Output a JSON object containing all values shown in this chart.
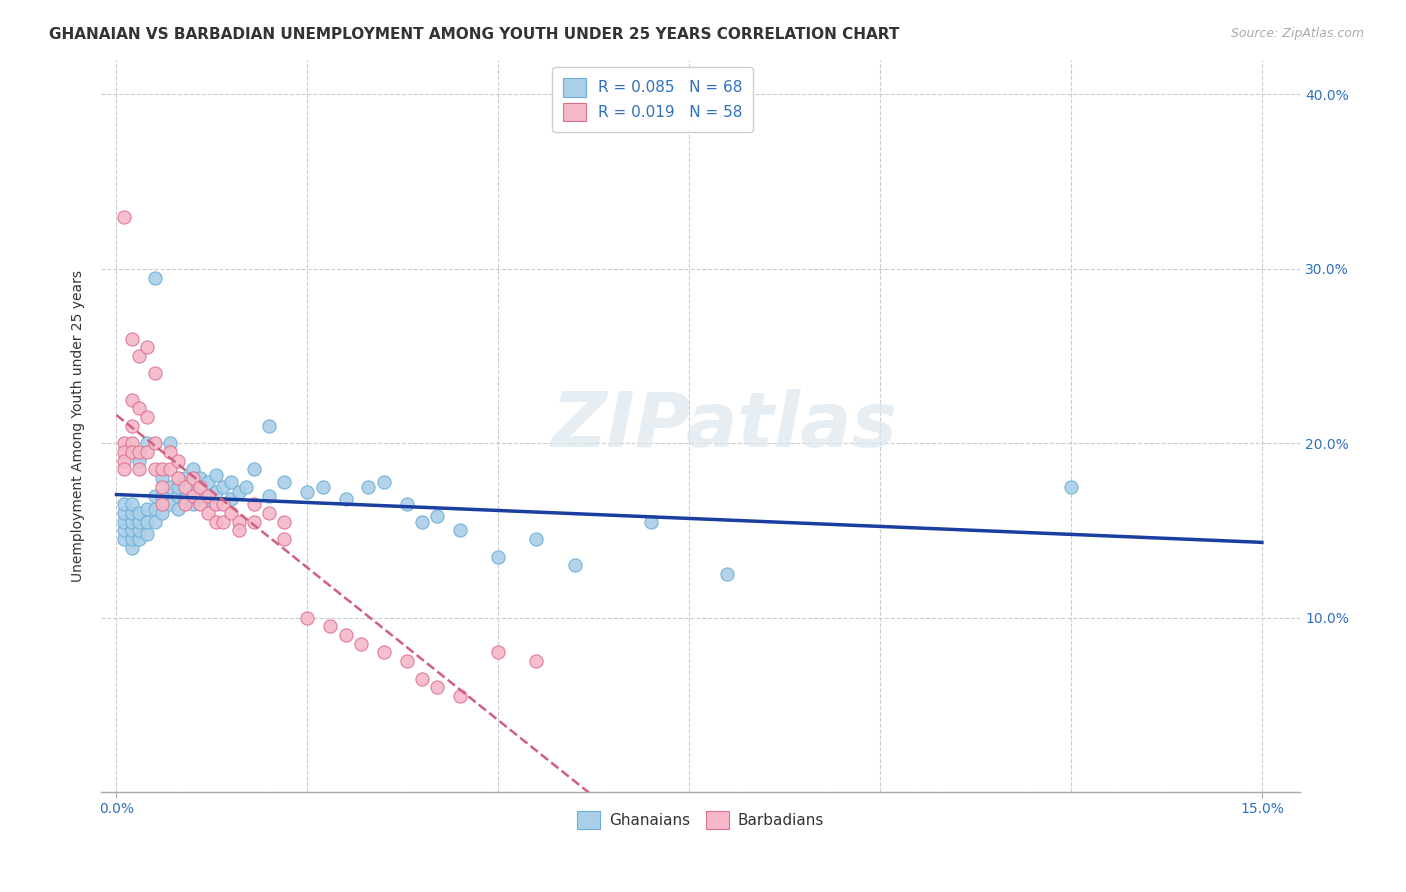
{
  "title": "GHANAIAN VS BARBADIAN UNEMPLOYMENT AMONG YOUTH UNDER 25 YEARS CORRELATION CHART",
  "source": "Source: ZipAtlas.com",
  "ylabel": "Unemployment Among Youth under 25 years",
  "xlim": [
    -0.002,
    0.155
  ],
  "ylim": [
    0.0,
    0.42
  ],
  "xticks": [
    0.0,
    0.15
  ],
  "xtick_labels": [
    "0.0%",
    "15.0%"
  ],
  "yticks": [
    0.0,
    0.1,
    0.2,
    0.3,
    0.4
  ],
  "ytick_labels_right": [
    "",
    "10.0%",
    "20.0%",
    "30.0%",
    "40.0%"
  ],
  "watermark": "ZIPatlas",
  "series": [
    {
      "name": "Ghanaians",
      "R": 0.085,
      "N": 68,
      "color": "#aacfe8",
      "edge_color": "#6baed6",
      "trend_color": "#1a3fa0",
      "trend_style": "solid",
      "x": [
        0.001,
        0.001,
        0.001,
        0.001,
        0.001,
        0.002,
        0.002,
        0.002,
        0.002,
        0.002,
        0.002,
        0.003,
        0.003,
        0.003,
        0.003,
        0.003,
        0.004,
        0.004,
        0.004,
        0.004,
        0.005,
        0.005,
        0.005,
        0.005,
        0.006,
        0.006,
        0.006,
        0.007,
        0.007,
        0.007,
        0.008,
        0.008,
        0.008,
        0.009,
        0.009,
        0.01,
        0.01,
        0.01,
        0.011,
        0.011,
        0.012,
        0.012,
        0.013,
        0.013,
        0.014,
        0.015,
        0.015,
        0.016,
        0.017,
        0.018,
        0.02,
        0.02,
        0.022,
        0.025,
        0.027,
        0.03,
        0.033,
        0.035,
        0.038,
        0.04,
        0.042,
        0.045,
        0.05,
        0.055,
        0.06,
        0.07,
        0.08,
        0.125
      ],
      "y": [
        0.145,
        0.15,
        0.155,
        0.16,
        0.165,
        0.14,
        0.145,
        0.15,
        0.155,
        0.16,
        0.165,
        0.145,
        0.15,
        0.155,
        0.16,
        0.19,
        0.148,
        0.155,
        0.162,
        0.2,
        0.155,
        0.162,
        0.17,
        0.295,
        0.16,
        0.17,
        0.18,
        0.165,
        0.175,
        0.2,
        0.162,
        0.17,
        0.175,
        0.168,
        0.18,
        0.165,
        0.172,
        0.185,
        0.17,
        0.18,
        0.168,
        0.178,
        0.172,
        0.182,
        0.175,
        0.168,
        0.178,
        0.172,
        0.175,
        0.185,
        0.17,
        0.21,
        0.178,
        0.172,
        0.175,
        0.168,
        0.175,
        0.178,
        0.165,
        0.155,
        0.158,
        0.15,
        0.135,
        0.145,
        0.13,
        0.155,
        0.125,
        0.175
      ]
    },
    {
      "name": "Barbadians",
      "R": 0.019,
      "N": 58,
      "color": "#f4b8c8",
      "edge_color": "#e07090",
      "trend_color": "#d06080",
      "trend_style": "dashed",
      "x": [
        0.001,
        0.001,
        0.001,
        0.001,
        0.001,
        0.002,
        0.002,
        0.002,
        0.002,
        0.002,
        0.003,
        0.003,
        0.003,
        0.003,
        0.004,
        0.004,
        0.004,
        0.005,
        0.005,
        0.005,
        0.006,
        0.006,
        0.006,
        0.007,
        0.007,
        0.008,
        0.008,
        0.009,
        0.009,
        0.01,
        0.01,
        0.011,
        0.011,
        0.012,
        0.012,
        0.013,
        0.013,
        0.014,
        0.014,
        0.015,
        0.016,
        0.016,
        0.018,
        0.018,
        0.02,
        0.022,
        0.022,
        0.025,
        0.028,
        0.03,
        0.032,
        0.035,
        0.038,
        0.04,
        0.042,
        0.045,
        0.05,
        0.055
      ],
      "y": [
        0.33,
        0.2,
        0.195,
        0.19,
        0.185,
        0.26,
        0.225,
        0.21,
        0.2,
        0.195,
        0.25,
        0.22,
        0.195,
        0.185,
        0.255,
        0.215,
        0.195,
        0.24,
        0.2,
        0.185,
        0.185,
        0.175,
        0.165,
        0.195,
        0.185,
        0.19,
        0.18,
        0.175,
        0.165,
        0.18,
        0.17,
        0.175,
        0.165,
        0.17,
        0.16,
        0.165,
        0.155,
        0.165,
        0.155,
        0.16,
        0.155,
        0.15,
        0.165,
        0.155,
        0.16,
        0.155,
        0.145,
        0.1,
        0.095,
        0.09,
        0.085,
        0.08,
        0.075,
        0.065,
        0.06,
        0.055,
        0.08,
        0.075
      ]
    }
  ],
  "background_color": "#ffffff",
  "grid_color": "#cccccc",
  "title_fontsize": 11,
  "axis_label_fontsize": 10,
  "tick_fontsize": 10,
  "legend_fontsize": 11
}
